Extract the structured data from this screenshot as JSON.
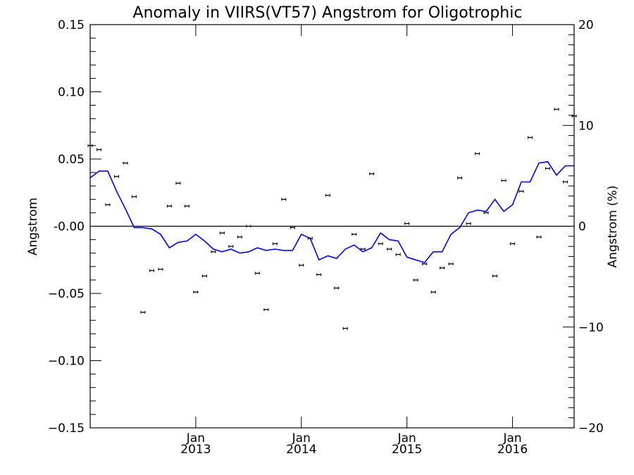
{
  "chart_data": {
    "type": "scatter",
    "title": "Anomaly in VIIRS(VT57) Angstrom for Oligotrophic",
    "xlabel": "",
    "ylabel": "Angstrom",
    "y2label": "Angstrom (%)",
    "ylim": [
      -0.15,
      0.15
    ],
    "y2lim": [
      -20,
      20
    ],
    "xlim": [
      "2012-01",
      "2016-08"
    ],
    "y_ticks": [
      "0.15",
      "0.10",
      "0.05",
      "-0.00",
      "−0.05",
      "−0.10",
      "−0.15"
    ],
    "y2_ticks": [
      "20",
      "10",
      "0",
      "−10",
      "−20"
    ],
    "x_ticks": [
      {
        "date": "2013-01",
        "top": "Jan",
        "bottom": "2013"
      },
      {
        "date": "2014-01",
        "top": "Jan",
        "bottom": "2014"
      },
      {
        "date": "2015-01",
        "top": "Jan",
        "bottom": "2015"
      },
      {
        "date": "2016-01",
        "top": "Jan",
        "bottom": "2016"
      }
    ],
    "zero_line": true,
    "series": [
      {
        "style": "points-with-errorbars",
        "color": "#000000",
        "x": [
          "2012-01",
          "2012-02",
          "2012-03",
          "2012-04",
          "2012-05",
          "2012-06",
          "2012-07",
          "2012-08",
          "2012-09",
          "2012-10",
          "2012-11",
          "2012-12",
          "2013-01",
          "2013-02",
          "2013-03",
          "2013-04",
          "2013-05",
          "2013-06",
          "2013-07",
          "2013-08",
          "2013-09",
          "2013-10",
          "2013-11",
          "2013-12",
          "2014-01",
          "2014-02",
          "2014-03",
          "2014-04",
          "2014-05",
          "2014-06",
          "2014-07",
          "2014-08",
          "2014-09",
          "2014-10",
          "2014-11",
          "2014-12",
          "2015-01",
          "2015-02",
          "2015-03",
          "2015-04",
          "2015-05",
          "2015-06",
          "2015-07",
          "2015-08",
          "2015-09",
          "2015-10",
          "2015-11",
          "2015-12",
          "2016-01",
          "2016-02",
          "2016-03",
          "2016-04",
          "2016-05",
          "2016-06",
          "2016-07",
          "2016-08"
        ],
        "values": [
          0.06,
          0.057,
          0.016,
          0.037,
          0.047,
          0.022,
          -0.064,
          -0.033,
          -0.032,
          0.015,
          0.032,
          0.015,
          -0.049,
          -0.037,
          -0.019,
          -0.005,
          -0.015,
          -0.008,
          0.0,
          -0.035,
          -0.062,
          -0.013,
          0.02,
          -0.001,
          -0.029,
          -0.009,
          -0.036,
          0.023,
          -0.046,
          -0.076,
          -0.006,
          -0.017,
          0.039,
          -0.013,
          -0.017,
          -0.021,
          0.002,
          -0.04,
          -0.028,
          -0.049,
          -0.031,
          -0.028,
          0.036,
          0.002,
          0.054,
          0.01,
          -0.037,
          0.034,
          -0.013,
          0.026,
          0.066,
          -0.008,
          0.043,
          0.087,
          0.033,
          0.082
        ]
      },
      {
        "style": "line",
        "color": "#0000ff",
        "x": [
          "2012-01",
          "2012-02",
          "2012-03",
          "2012-04",
          "2012-05",
          "2012-06",
          "2012-07",
          "2012-08",
          "2012-09",
          "2012-10",
          "2012-11",
          "2012-12",
          "2013-01",
          "2013-02",
          "2013-03",
          "2013-04",
          "2013-05",
          "2013-06",
          "2013-07",
          "2013-08",
          "2013-09",
          "2013-10",
          "2013-11",
          "2013-12",
          "2014-01",
          "2014-02",
          "2014-03",
          "2014-04",
          "2014-05",
          "2014-06",
          "2014-07",
          "2014-08",
          "2014-09",
          "2014-10",
          "2014-11",
          "2014-12",
          "2015-01",
          "2015-02",
          "2015-03",
          "2015-04",
          "2015-05",
          "2015-06",
          "2015-07",
          "2015-08",
          "2015-09",
          "2015-10",
          "2015-11",
          "2015-12",
          "2016-01",
          "2016-02",
          "2016-03",
          "2016-04",
          "2016-05",
          "2016-06",
          "2016-07",
          "2016-08"
        ],
        "values": [
          0.036,
          0.041,
          0.041,
          0.026,
          0.013,
          -0.001,
          -0.001,
          -0.002,
          -0.006,
          -0.016,
          -0.012,
          -0.011,
          -0.006,
          -0.011,
          -0.017,
          -0.019,
          -0.017,
          -0.02,
          -0.019,
          -0.016,
          -0.018,
          -0.017,
          -0.018,
          -0.018,
          -0.006,
          -0.009,
          -0.025,
          -0.022,
          -0.024,
          -0.017,
          -0.014,
          -0.019,
          -0.016,
          -0.005,
          -0.01,
          -0.011,
          -0.023,
          -0.025,
          -0.027,
          -0.019,
          -0.019,
          -0.006,
          -0.001,
          0.01,
          0.012,
          0.011,
          0.02,
          0.011,
          0.016,
          0.033,
          0.033,
          0.047,
          0.048,
          0.038,
          0.045,
          0.045
        ]
      }
    ]
  }
}
